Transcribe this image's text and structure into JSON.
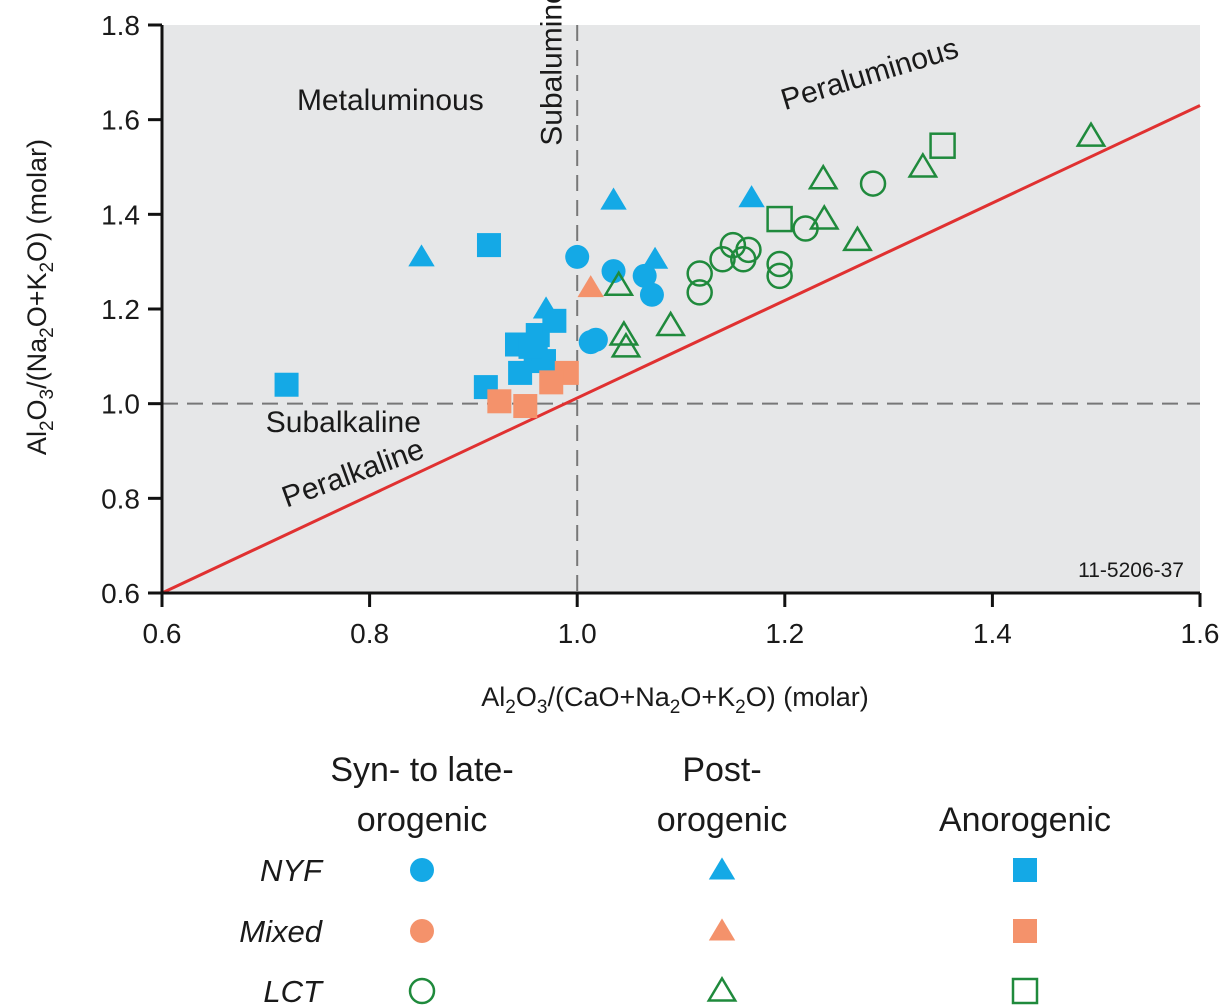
{
  "chart_data": {
    "type": "scatter",
    "title": "",
    "xlabel": {
      "parts": [
        "Al",
        "2",
        "O",
        "3",
        "/(CaO+Na",
        "2",
        "O+K",
        "2",
        "O) (molar)"
      ]
    },
    "ylabel": {
      "parts": [
        "Al",
        "2",
        "O",
        "3",
        "/(Na",
        "2",
        "O+K",
        "2",
        "O) (molar)"
      ]
    },
    "xlim": [
      0.6,
      1.6
    ],
    "ylim": [
      0.6,
      1.8
    ],
    "xticks": [
      "0.6",
      "0.8",
      "1.0",
      "1.2",
      "1.4",
      "1.6"
    ],
    "yticks": [
      "0.6",
      "0.8",
      "1.0",
      "1.2",
      "1.4",
      "1.6",
      "1.8"
    ],
    "grid": false,
    "figure_code": "11-5206-37",
    "reference_lines": [
      {
        "kind": "vertical",
        "x": 1.0,
        "style": "dashed"
      },
      {
        "kind": "horizontal",
        "y": 1.0,
        "style": "dashed"
      },
      {
        "kind": "boundary",
        "from": [
          0.6,
          0.6
        ],
        "to": [
          1.6,
          1.63
        ],
        "color": "#e03131"
      }
    ],
    "region_labels": [
      {
        "text": "Metaluminous",
        "x": 0.73,
        "y": 1.62,
        "rotate": 0
      },
      {
        "text": "Subaluminous",
        "x": 0.985,
        "y": 1.545,
        "rotate": -90
      },
      {
        "text": "Peraluminous",
        "x": 1.2,
        "y": 1.62,
        "rotate": -17
      },
      {
        "text": "Subalkaline",
        "x": 0.7,
        "y": 0.94,
        "rotate": 0
      },
      {
        "text": "Peralkaline",
        "x": 0.72,
        "y": 0.78,
        "rotate": -20
      }
    ],
    "colors": {
      "NYF": "#14a9e6",
      "Mixed": "#f4926b",
      "LCT": "#1f8a3c"
    },
    "series": [
      {
        "name": "NYF",
        "group": "Syn- to late-orogenic",
        "marker": "circle",
        "filled": true,
        "x": [
          1.0,
          1.035,
          1.065,
          1.072,
          1.018,
          1.013
        ],
        "y": [
          1.31,
          1.28,
          1.27,
          1.23,
          1.135,
          1.13
        ]
      },
      {
        "name": "NYF",
        "group": "Post-orogenic",
        "marker": "triangle",
        "filled": true,
        "x": [
          0.85,
          1.035,
          1.168,
          1.075,
          0.97
        ],
        "y": [
          1.31,
          1.43,
          1.435,
          1.305,
          1.2
        ]
      },
      {
        "name": "NYF",
        "group": "Anorogenic",
        "marker": "square",
        "filled": true,
        "x": [
          0.72,
          0.915,
          0.912,
          0.942,
          0.962,
          0.978,
          0.96,
          0.968,
          0.945,
          0.955
        ],
        "y": [
          1.04,
          1.335,
          1.035,
          1.125,
          1.145,
          1.175,
          1.1,
          1.09,
          1.065,
          1.12
        ]
      },
      {
        "name": "Mixed",
        "group": "Post-orogenic",
        "marker": "triangle",
        "filled": true,
        "x": [
          1.013
        ],
        "y": [
          1.245
        ]
      },
      {
        "name": "Mixed",
        "group": "Anorogenic",
        "marker": "square",
        "filled": true,
        "x": [
          0.925,
          0.95,
          0.99,
          0.975
        ],
        "y": [
          1.005,
          0.995,
          1.065,
          1.045
        ]
      },
      {
        "name": "LCT",
        "group": "Syn- to late-orogenic",
        "marker": "circle",
        "filled": false,
        "x": [
          1.285,
          1.22,
          1.165,
          1.15,
          1.16,
          1.14,
          1.195,
          1.195,
          1.118,
          1.118
        ],
        "y": [
          1.465,
          1.37,
          1.325,
          1.335,
          1.305,
          1.305,
          1.295,
          1.27,
          1.275,
          1.235
        ]
      },
      {
        "name": "LCT",
        "group": "Post-orogenic",
        "marker": "triangle",
        "filled": false,
        "x": [
          1.495,
          1.333,
          1.237,
          1.238,
          1.27,
          1.045,
          1.047,
          1.09,
          1.04
        ],
        "y": [
          1.565,
          1.5,
          1.475,
          1.39,
          1.345,
          1.145,
          1.12,
          1.165,
          1.25
        ]
      },
      {
        "name": "LCT",
        "group": "Anorogenic",
        "marker": "square",
        "filled": false,
        "x": [
          1.352,
          1.195
        ],
        "y": [
          1.545,
          1.39
        ]
      }
    ]
  },
  "legend": {
    "columns": [
      {
        "line1": "Syn- to late-",
        "line2": "orogenic",
        "marker": "circle"
      },
      {
        "line1": "Post-",
        "line2": "orogenic",
        "marker": "triangle"
      },
      {
        "line1": "",
        "line2": "Anorogenic",
        "marker": "square"
      }
    ],
    "rows": [
      {
        "label": "NYF",
        "type": "NYF",
        "filled": true
      },
      {
        "label": "Mixed",
        "type": "Mixed",
        "filled": true
      },
      {
        "label": "LCT",
        "type": "LCT",
        "filled": false
      }
    ]
  }
}
